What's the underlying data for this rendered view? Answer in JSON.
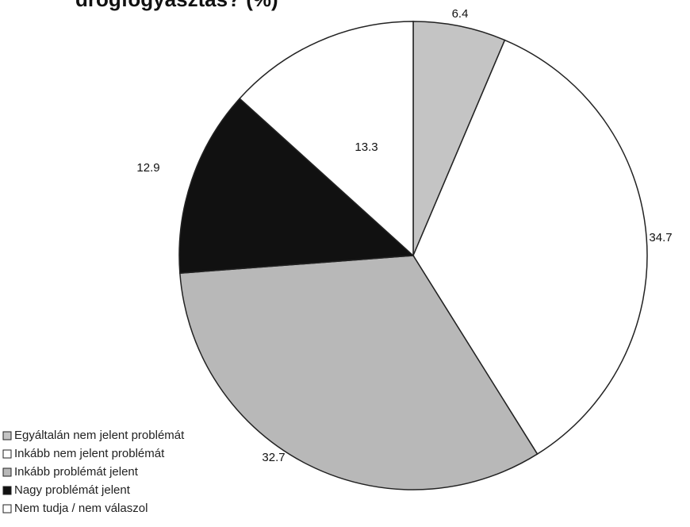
{
  "chart_data": {
    "type": "pie",
    "title": "drogfogyasztás? (%)",
    "categories": [
      "Egyáltalán nem jelent problémát",
      "Inkább nem jelent problémát",
      "Inkább problémát jelent",
      "Nagy problémát jelent",
      "Nem tudja / nem válaszol"
    ],
    "values": [
      6.4,
      34.7,
      32.7,
      12.9,
      13.3
    ],
    "colors": [
      "#c4c4c4",
      "#ffffff",
      "#b8b8b8",
      "#111111",
      "#ffffff"
    ]
  }
}
